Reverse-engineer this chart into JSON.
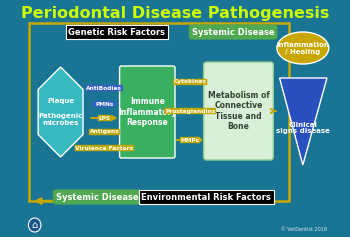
{
  "title": "Periodontal Disease Pathogenesis",
  "title_color": "#CCFF00",
  "bg_color": "#1a7595",
  "title_fontsize": 11.5,
  "plaque_label": "Plaque\n\nPathogenic\nmicrobes",
  "immune_label": "Immune\nInflammatory\nResponse",
  "metabolism_label": "Metabolism of\nConnective\nTissue and\nBone",
  "clinical_label": "Clinical\nsigns disease",
  "inflammation_label": "Inflammation\n/ Healing",
  "genetic_label": "Genetic Risk Factors",
  "systemic_top_label": "Systemic Disease",
  "systemic_bottom_label": "Systemic Disease",
  "environmental_label": "Environmental Risk Factors",
  "arrow_color": "#C8A800",
  "blue_arrow_color": "#3a5fc8",
  "plaque_color": "#38B8C0",
  "immune_color": "#38B060",
  "metabolism_color": "#D8F0D8",
  "clinical_color": "#2A50C0",
  "inflammation_color": "#C8A800",
  "copyright": "© VetDentist 2018"
}
